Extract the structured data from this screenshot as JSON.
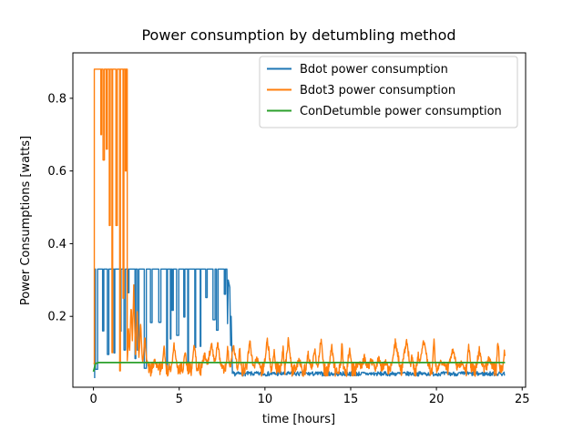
{
  "chart_data": {
    "type": "line",
    "title": "Power consumption by detumbling method",
    "xlabel": "time [hours]",
    "ylabel": "Power Consumptions [watts]",
    "xlim": [
      -1.2,
      25.2
    ],
    "ylim": [
      0.005,
      0.925
    ],
    "xticks": [
      0,
      5,
      10,
      15,
      20,
      25
    ],
    "yticks": [
      0.2,
      0.4,
      0.6,
      0.8
    ],
    "grid": false,
    "background": "#ffffff",
    "legend": {
      "position": "upper right",
      "entries": [
        "Bdot power consumption",
        "Bdot3 power consumption",
        "ConDetumble power consumption"
      ]
    },
    "series": [
      {
        "name": "Bdot power consumption",
        "color": "#1f77b4",
        "width": 1.4,
        "seed": 7,
        "description": "Square-wave oscillation between ~0.33 W and variable lows 0.04-0.27 W from t=0.1 to t=7.7 h, final stepped decay spike near t=8, then flat noisy baseline ~0.045 W until t=24 h",
        "segments": [
          {
            "type": "pts",
            "pts": [
              [
                0.07,
                0.03
              ],
              [
                0.07,
                0.33
              ]
            ]
          },
          {
            "type": "square",
            "t0": 0.07,
            "t1": 7.7,
            "high": 0.33,
            "low": [
              0.04,
              0.27
            ],
            "wHigh": [
              0.04,
              0.4
            ],
            "wLow": [
              0.03,
              0.13
            ]
          },
          {
            "type": "pts",
            "pts": [
              [
                7.7,
                0.33
              ],
              [
                7.78,
                0.33
              ],
              [
                7.82,
                0.18
              ],
              [
                7.86,
                0.3
              ],
              [
                7.95,
                0.28
              ],
              [
                8.0,
                0.12
              ],
              [
                8.03,
                0.2
              ],
              [
                8.1,
                0.05
              ]
            ]
          },
          {
            "type": "spiky",
            "t0": 8.1,
            "t1": 24.0,
            "base": 0.042,
            "noise": 0.006,
            "dt": 0.03
          }
        ]
      },
      {
        "name": "Bdot3 power consumption",
        "color": "#ff7f0e",
        "width": 1.4,
        "seed": 13,
        "description": "High plateau ~0.88 W from t=0 to t~2 h with intermittent dips, decaying spike cluster to 0.28 W near t=2.3 h, then noisy ~0.05-0.08 W band with periodic peaks up to ~0.15 W until t=24 h",
        "segments": [
          {
            "type": "pts",
            "pts": [
              [
                0.0,
                0.07
              ]
            ]
          },
          {
            "type": "block",
            "t0": 0.05,
            "t1": 1.97,
            "top": 0.88,
            "from": 0.07,
            "to": 0.08,
            "dips": [
              {
                "t": 0.45,
                "v": 0.7,
                "w": 0.04
              },
              {
                "t": 0.6,
                "v": 0.63,
                "w": 0.08
              },
              {
                "t": 0.78,
                "v": 0.66,
                "w": 0.06
              },
              {
                "t": 0.95,
                "v": 0.45,
                "w": 0.05
              },
              {
                "t": 1.1,
                "v": 0.1,
                "w": 0.04
              },
              {
                "t": 1.35,
                "v": 0.45,
                "w": 0.08
              },
              {
                "t": 1.55,
                "v": 0.05,
                "w": 0.04
              },
              {
                "t": 1.75,
                "v": 0.25,
                "w": 0.05
              },
              {
                "t": 1.88,
                "v": 0.6,
                "w": 0.04
              }
            ]
          },
          {
            "type": "spiky",
            "t0": 1.97,
            "t1": 3.3,
            "base": 0.06,
            "noise": 0.015,
            "dt": 0.02,
            "peaks": [
              {
                "t": 2.05,
                "v": 0.16,
                "w": 0.1
              },
              {
                "t": 2.2,
                "v": 0.24,
                "w": 0.12
              },
              {
                "t": 2.35,
                "v": 0.28,
                "w": 0.12
              },
              {
                "t": 2.55,
                "v": 0.21,
                "w": 0.12
              },
              {
                "t": 2.75,
                "v": 0.18,
                "w": 0.12
              },
              {
                "t": 3.0,
                "v": 0.14,
                "w": 0.15
              }
            ]
          },
          {
            "type": "spiky",
            "t0": 3.3,
            "t1": 24.0,
            "base": 0.055,
            "noise": 0.02,
            "dt": 0.02,
            "peakEvery": [
              0.3,
              0.65
            ],
            "peakAmp": [
              0.015,
              0.085
            ],
            "peakW": [
              0.08,
              0.3
            ]
          }
        ]
      },
      {
        "name": "ConDetumble power consumption",
        "color": "#2ca02c",
        "width": 1.8,
        "seed": 3,
        "description": "Constant ~0.073 W from t=0 to t=24 h after a brief initial rise from ~0.05 W",
        "segments": [
          {
            "type": "pts",
            "pts": [
              [
                0.0,
                0.048
              ],
              [
                0.12,
                0.07
              ],
              [
                0.3,
                0.073
              ],
              [
                24.0,
                0.073
              ]
            ]
          }
        ]
      }
    ]
  }
}
